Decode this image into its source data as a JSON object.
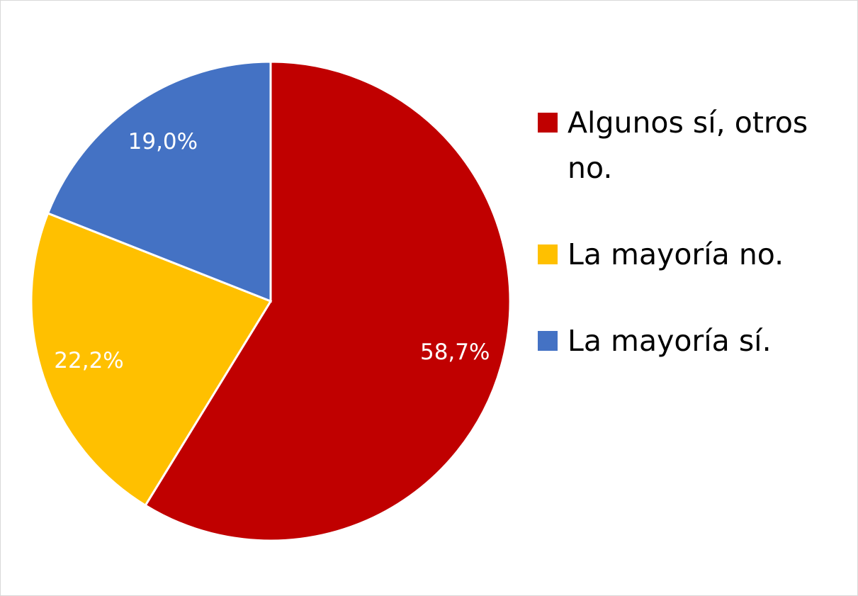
{
  "chart_data": {
    "type": "pie",
    "categories": [
      "Algunos sí, otros no.",
      "La mayoría no.",
      "La mayoría sí."
    ],
    "values": [
      58.7,
      22.2,
      19.0
    ],
    "value_labels": [
      "58,7%",
      "22,2%",
      "19,0%"
    ],
    "colors": [
      "#c00000",
      "#ffc000",
      "#4472c4"
    ],
    "legend": "right"
  }
}
